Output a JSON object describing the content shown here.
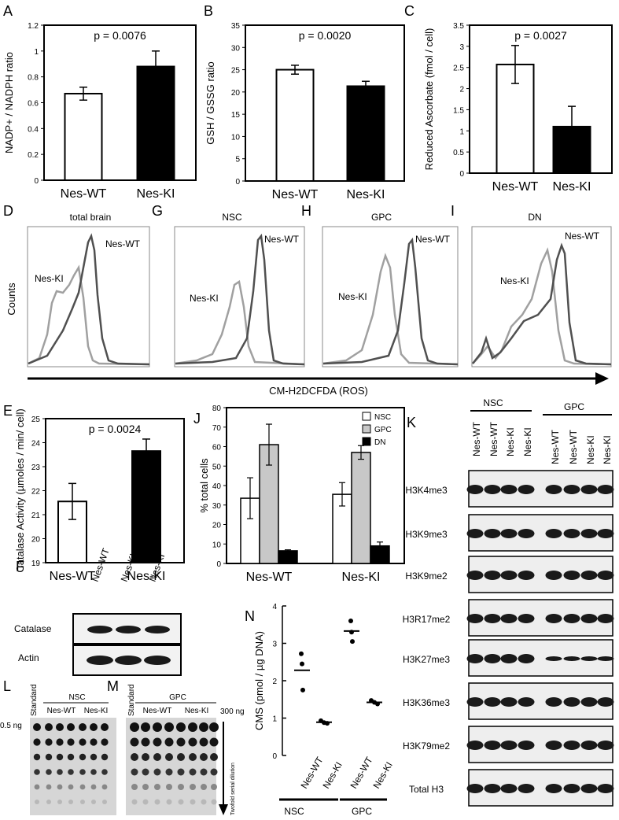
{
  "panels": {
    "A": {
      "letter": "A"
    },
    "B": {
      "letter": "B"
    },
    "C": {
      "letter": "C"
    },
    "D": {
      "letter": "D",
      "title": "total brain"
    },
    "G": {
      "letter": "G",
      "title": "NSC"
    },
    "H": {
      "letter": "H",
      "title": "GPC"
    },
    "I": {
      "letter": "I",
      "title": "DN"
    },
    "E": {
      "letter": "E"
    },
    "J": {
      "letter": "J"
    },
    "K": {
      "letter": "K"
    },
    "F": {
      "letter": "F"
    },
    "N": {
      "letter": "N"
    },
    "L": {
      "letter": "L"
    },
    "M": {
      "letter": "M"
    }
  },
  "flow": {
    "ylabel": "Counts",
    "xlabel": "CM-H2DCFDA (ROS)",
    "wt": "Nes-WT",
    "ki": "Nes-KI"
  },
  "western_F": {
    "lanes": [
      "Nes-WT",
      "Nes-KI",
      "Nes-KI"
    ],
    "rows": [
      "Catalase",
      "Actin"
    ]
  },
  "western_K": {
    "group1": "NSC",
    "group2": "GPC",
    "lanes": [
      "Nes-WT",
      "Nes-WT",
      "Nes-KI",
      "Nes-KI",
      "Nes-WT",
      "Nes-WT",
      "Nes-KI",
      "Nes-KI"
    ],
    "rows": [
      "H3K4me3",
      "H3K9me3",
      "H3K9me2",
      "H3R17me2",
      "H3K27me3",
      "H3K36me3",
      "H3K79me2",
      "Total H3"
    ]
  },
  "dotblot": {
    "L_group": "NSC",
    "M_group": "GPC",
    "standard": "Standard",
    "wt": "Nes-WT",
    "ki": "Nes-KI",
    "left_amount": "0.5 ng",
    "right_amount": "300 ng",
    "dilution": "Twofold serial dilution"
  },
  "chart_data": [
    {
      "panel": "A",
      "type": "bar",
      "categories": [
        "Nes-WT",
        "Nes-KI"
      ],
      "values": [
        0.67,
        0.88
      ],
      "errors": [
        0.05,
        0.12
      ],
      "colors": [
        "#ffffff",
        "#000000"
      ],
      "ylabel": "NADP+ / NADPH ratio",
      "ylim": [
        0,
        1.2
      ],
      "ticks": [
        0,
        0.2,
        0.4,
        0.6,
        0.8,
        1,
        1.2
      ],
      "tick_labels": [
        "0",
        "0.2",
        "0.4",
        "0.6",
        "0.8",
        "1",
        "1.2"
      ],
      "annotation": "p = 0.0076"
    },
    {
      "panel": "B",
      "type": "bar",
      "categories": [
        "Nes-WT",
        "Nes-KI"
      ],
      "values": [
        25,
        21.3
      ],
      "errors": [
        1,
        1.1
      ],
      "colors": [
        "#ffffff",
        "#000000"
      ],
      "ylabel": "GSH / GSSG ratio",
      "ylim": [
        0,
        35
      ],
      "ticks": [
        0,
        5,
        10,
        15,
        20,
        25,
        30,
        35
      ],
      "tick_labels": [
        "0",
        "5",
        "10",
        "15",
        "20",
        "25",
        "30",
        "35"
      ],
      "annotation": "p = 0.0020"
    },
    {
      "panel": "C",
      "type": "bar",
      "categories": [
        "Nes-WT",
        "Nes-KI"
      ],
      "values": [
        2.57,
        1.1
      ],
      "errors": [
        0.45,
        0.48
      ],
      "colors": [
        "#ffffff",
        "#000000"
      ],
      "ylabel": "Reduced Ascorbate (fmol / cell)",
      "ylim": [
        0,
        3.5
      ],
      "ticks": [
        0,
        0.5,
        1,
        1.5,
        2,
        2.5,
        3,
        3.5
      ],
      "tick_labels": [
        "0",
        "0.5",
        "1",
        "1.5",
        "2",
        "2.5",
        "3",
        "3.5"
      ],
      "annotation": "p = 0.0027"
    },
    {
      "panel": "E",
      "type": "bar",
      "categories": [
        "Nes-WT",
        "Nes-KI"
      ],
      "values": [
        21.55,
        23.65
      ],
      "errors": [
        0.75,
        0.5
      ],
      "colors": [
        "#ffffff",
        "#000000"
      ],
      "ylabel": "Catalase Activity (µmoles / min/ cell)",
      "ylim": [
        19,
        25
      ],
      "ticks": [
        19,
        20,
        21,
        22,
        23,
        24,
        25
      ],
      "tick_labels": [
        "19",
        "20",
        "21",
        "22",
        "23",
        "24",
        "25"
      ],
      "annotation": "p = 0.0024"
    },
    {
      "panel": "J",
      "type": "bar",
      "categories": [
        "Nes-WT",
        "Nes-KI"
      ],
      "series": [
        {
          "name": "NSC",
          "values": [
            33.5,
            35.5
          ],
          "errors": [
            10.5,
            6
          ],
          "color": "#ffffff"
        },
        {
          "name": "GPC",
          "values": [
            61,
            57
          ],
          "errors": [
            10.5,
            3.5
          ],
          "color": "#c8c8c8"
        },
        {
          "name": "DN",
          "values": [
            6.5,
            9
          ],
          "errors": [
            0.5,
            2
          ],
          "color": "#000000"
        }
      ],
      "ylabel": "% total cells",
      "ylim": [
        0,
        80
      ],
      "ticks": [
        0,
        10,
        20,
        30,
        40,
        50,
        60,
        70,
        80
      ],
      "tick_labels": [
        "0",
        "10",
        "20",
        "30",
        "40",
        "50",
        "60",
        "70",
        "80"
      ],
      "legend": "top-right"
    },
    {
      "panel": "N",
      "type": "scatter",
      "categories": [
        "Nes-WT",
        "Nes-KI",
        "Nes-WT",
        "Nes-KI"
      ],
      "groups": [
        "NSC",
        "GPC"
      ],
      "points": [
        [
          2.72,
          2.45,
          1.75
        ],
        [
          0.93,
          0.88,
          0.86
        ],
        [
          3.6,
          3.3,
          3.05
        ],
        [
          1.47,
          1.42,
          1.38
        ]
      ],
      "means": [
        2.28,
        0.89,
        3.33,
        1.42
      ],
      "ylabel": "CMS (pmol / µg DNA)",
      "ylim": [
        0,
        4
      ],
      "ticks": [
        0,
        1,
        2,
        3,
        4
      ],
      "tick_labels": [
        "0",
        "1",
        "2",
        "3",
        "4"
      ]
    }
  ]
}
